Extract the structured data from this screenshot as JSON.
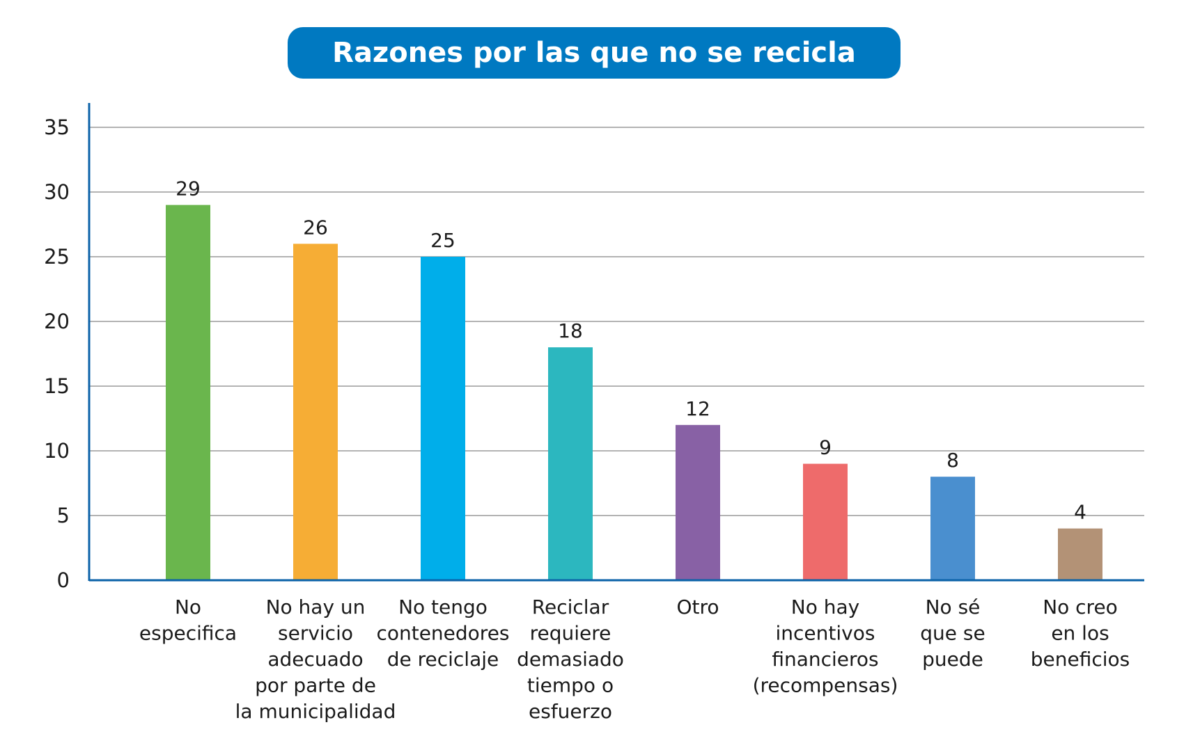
{
  "chart_data": {
    "type": "bar",
    "title": "Razones por las que no se recicla",
    "xlabel": "",
    "ylabel": "",
    "ylim": [
      0,
      35
    ],
    "yticks": [
      0,
      5,
      10,
      15,
      20,
      25,
      30,
      35
    ],
    "grid": true,
    "legend": "none",
    "categories": [
      [
        "No",
        "especifica"
      ],
      [
        "No hay un",
        "servicio",
        "adecuado",
        "por parte de",
        "la municipalidad"
      ],
      [
        "No tengo",
        "contenedores",
        "de reciclaje"
      ],
      [
        "Reciclar",
        "requiere",
        "demasiado",
        "tiempo o",
        "esfuerzo"
      ],
      [
        "Otro"
      ],
      [
        "No hay",
        "incentivos",
        "financieros",
        "(recompensas)"
      ],
      [
        "No sé",
        "que se",
        "puede"
      ],
      [
        "No creo",
        "en los",
        "beneficios"
      ]
    ],
    "values": [
      29,
      26,
      25,
      18,
      12,
      9,
      8,
      4
    ],
    "value_labels": [
      "29",
      "26",
      "25",
      "18",
      "12",
      "9",
      "8",
      "4"
    ],
    "colors": [
      "#6ab64d",
      "#f6ad35",
      "#00aeea",
      "#2cb7bf",
      "#8861a5",
      "#ee6b6b",
      "#4a8fcf",
      "#b39276"
    ],
    "title_bg_color": "#0079c1",
    "axis_color": "#0b62a8",
    "grid_color": "#b3b3b3"
  }
}
